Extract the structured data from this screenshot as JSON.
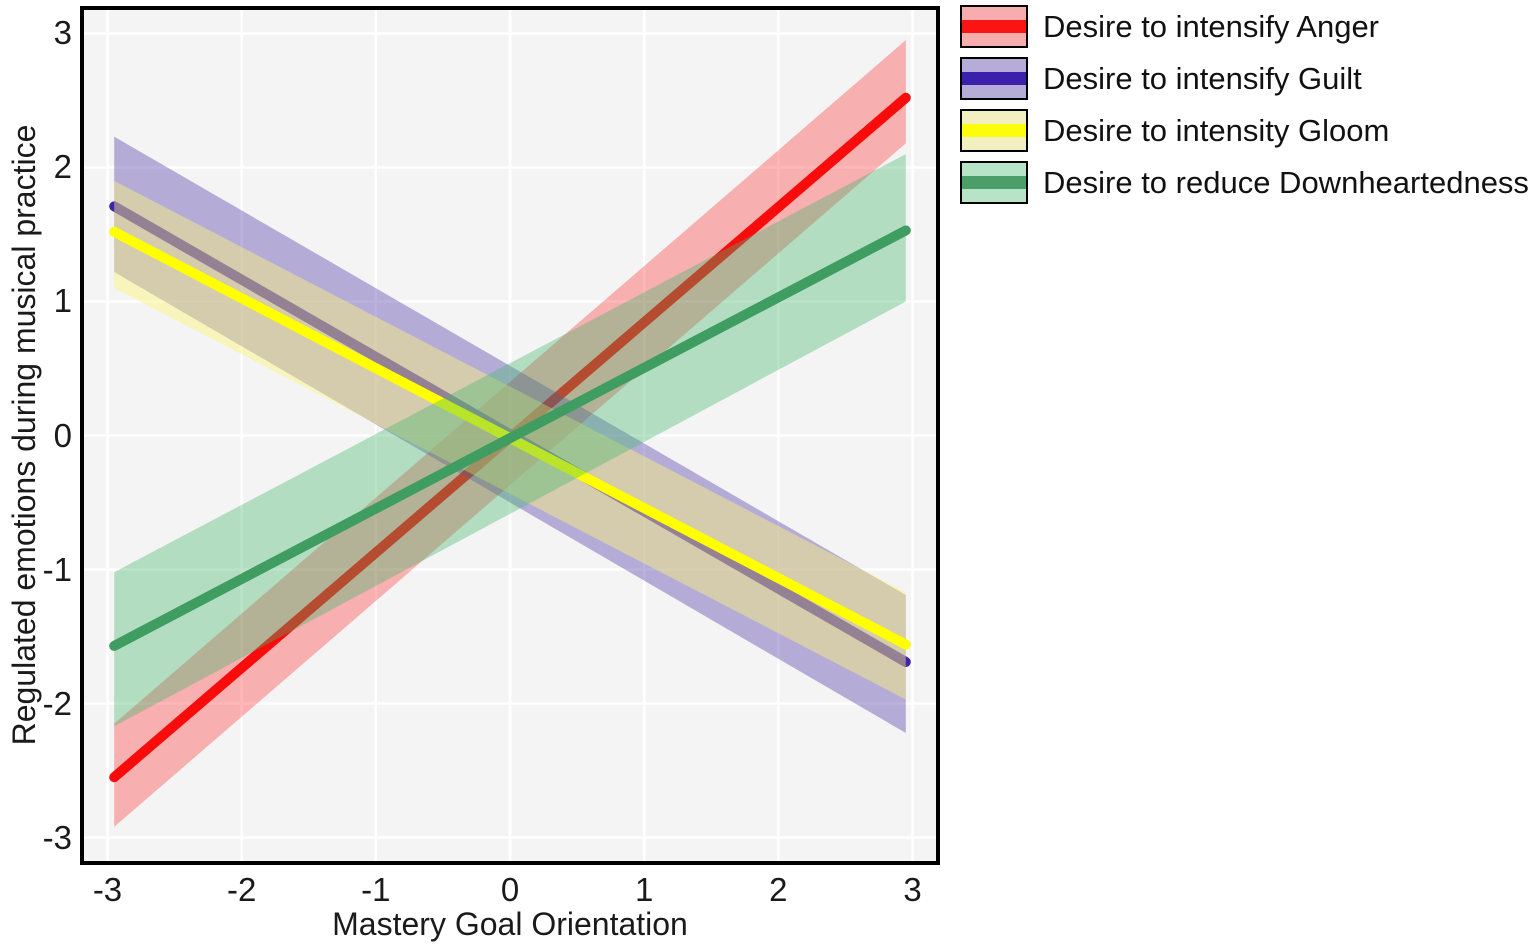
{
  "figure": {
    "background": "#ffffff",
    "panel_bg": "#f4f4f4",
    "grid_color": "#ffffff",
    "border_color": "#000000",
    "text_color": "#1a1a1a"
  },
  "chart_data": {
    "type": "line",
    "title": "",
    "xlabel": "Mastery Goal Orientation",
    "ylabel": "Regulated emotions during musical practice",
    "xlim": [
      -3.19,
      3.19
    ],
    "ylim": [
      -3.19,
      3.19
    ],
    "xticks": [
      -3,
      -2,
      -1,
      0,
      1,
      2,
      3
    ],
    "yticks": [
      -3,
      -2,
      -1,
      0,
      1,
      2,
      3
    ],
    "grid": "major gridlines only, white on light gray panel",
    "legend_position": "outside top-right",
    "series": [
      {
        "name": "Desire to intensify Anger",
        "x": [
          -2.95,
          2.95
        ],
        "y": [
          -2.55,
          2.52
        ],
        "ci_lower": [
          -2.92,
          2.18
        ],
        "ci_upper": [
          -2.15,
          2.95
        ],
        "line_color": "#f80b0b",
        "band_color": "rgba(255,15,15,0.30)",
        "swatch_bg": "#f7adae",
        "swatch_stripe": "#fa1414"
      },
      {
        "name": "Desire to intensify Guilt",
        "x": [
          -2.95,
          2.95
        ],
        "y": [
          1.71,
          -1.69
        ],
        "ci_lower": [
          1.22,
          -2.22
        ],
        "ci_upper": [
          2.23,
          -1.19
        ],
        "line_color": "#4023aa",
        "band_color": "rgba(70,45,165,0.37)",
        "swatch_bg": "#b6acd8",
        "swatch_stripe": "#3a20aa"
      },
      {
        "name": "Desire to intensity Gloom",
        "x": [
          -2.95,
          2.95
        ],
        "y": [
          1.52,
          -1.56
        ],
        "ci_lower": [
          1.1,
          -1.97
        ],
        "ci_upper": [
          1.9,
          -1.17
        ],
        "line_color": "#ffff00",
        "band_color": "rgba(250,245,120,0.45)",
        "swatch_bg": "#f2efc1",
        "swatch_stripe": "#fdfd0a"
      },
      {
        "name": "Desire to reduce Downheartedness",
        "x": [
          -2.95,
          2.95
        ],
        "y": [
          -1.57,
          1.53
        ],
        "ci_lower": [
          -2.17,
          1.0
        ],
        "ci_upper": [
          -1.02,
          2.1
        ],
        "line_color": "#3f9d62",
        "band_color": "rgba(70,185,110,0.38)",
        "swatch_bg": "#b7e3c7",
        "swatch_stripe": "#4c9e68"
      }
    ]
  }
}
